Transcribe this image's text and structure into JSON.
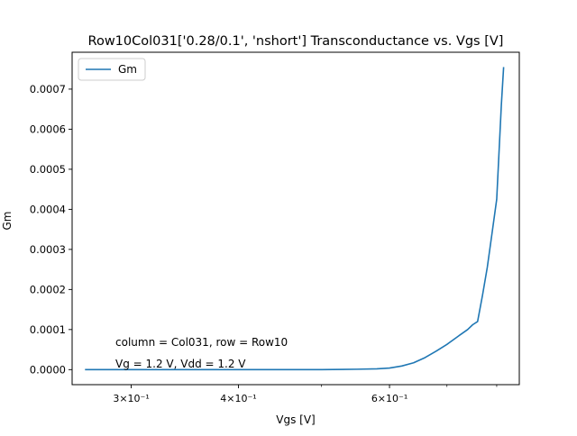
{
  "chart_data": {
    "type": "line",
    "title": "Row10Col031['0.28/0.1', 'nshort'] Transconductance vs. Vgs [V]",
    "xlabel": "Vgs [V]",
    "ylabel": "Gm",
    "xscale": "log",
    "xlim": [
      0.256,
      0.85
    ],
    "ylim": [
      -3.75e-05,
      0.000792
    ],
    "grid": false,
    "legend_position": "upper left",
    "x_ticks": [
      {
        "value": 0.3,
        "label": "3×10⁻¹"
      },
      {
        "value": 0.4,
        "label": "4×10⁻¹"
      },
      {
        "value": 0.6,
        "label": "6×10⁻¹"
      }
    ],
    "x_minor_ticks": [
      0.5,
      0.7,
      0.8
    ],
    "y_ticks": [
      {
        "value": 0,
        "label": "0.0000"
      },
      {
        "value": 0.0001,
        "label": "0.0001"
      },
      {
        "value": 0.0002,
        "label": "0.0002"
      },
      {
        "value": 0.0003,
        "label": "0.0003"
      },
      {
        "value": 0.0004,
        "label": "0.0004"
      },
      {
        "value": 0.0005,
        "label": "0.0005"
      },
      {
        "value": 0.0006,
        "label": "0.0006"
      },
      {
        "value": 0.0007,
        "label": "0.0007"
      }
    ],
    "series": [
      {
        "name": "Gm",
        "color": "#1f77b4",
        "x": [
          0.265,
          0.3,
          0.35,
          0.4,
          0.45,
          0.5,
          0.55,
          0.58,
          0.6,
          0.62,
          0.64,
          0.66,
          0.68,
          0.7,
          0.72,
          0.74,
          0.75,
          0.76,
          0.77,
          0.78,
          0.79,
          0.8,
          0.81,
          0.815
        ],
        "values": [
          0.0,
          0.0,
          0.0,
          0.0,
          0.0,
          0.0,
          1e-06,
          2e-06,
          4e-06,
          9e-06,
          1.7e-05,
          3e-05,
          4.6e-05,
          6.3e-05,
          8.2e-05,
          0.0001,
          0.000112,
          0.00012,
          0.000185,
          0.000255,
          0.00034,
          0.000425,
          0.00066,
          0.000755
        ]
      }
    ],
    "annotations": [
      "column = Col031, row = Row10",
      "Vg = 1.2 V, Vdd = 1.2 V"
    ]
  }
}
